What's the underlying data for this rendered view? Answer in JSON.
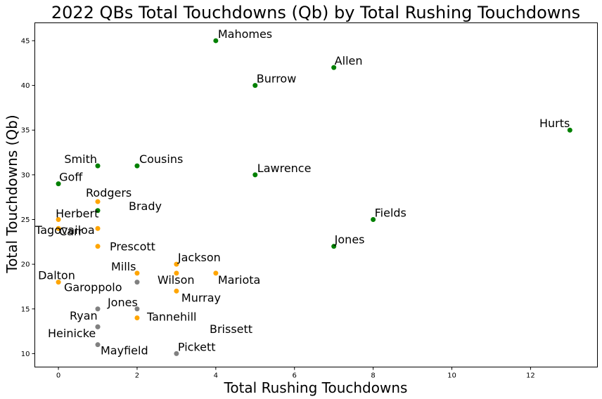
{
  "chart_data": {
    "type": "scatter",
    "title": "2022 QBs Total Touchdowns (Qb) by Total Rushing Touchdowns",
    "xlabel": "Total Rushing Touchdowns",
    "ylabel": "Total Touchdowns (Qb)",
    "xlim": [
      -0.6,
      13.7
    ],
    "ylim": [
      8.5,
      47
    ],
    "xticks": [
      0,
      2,
      4,
      6,
      8,
      10,
      12
    ],
    "yticks": [
      10,
      15,
      20,
      25,
      30,
      35,
      40,
      45
    ],
    "grid": false,
    "colors": {
      "high": "#008000",
      "mid": "#ffa500",
      "low": "#808080"
    },
    "points": [
      {
        "label": "Mahomes",
        "x": 4,
        "y": 45,
        "group": "high"
      },
      {
        "label": "Allen",
        "x": 7,
        "y": 42,
        "group": "high"
      },
      {
        "label": "Burrow",
        "x": 5,
        "y": 40,
        "group": "high"
      },
      {
        "label": "Hurts",
        "x": 13,
        "y": 35,
        "group": "high"
      },
      {
        "label": "Smith",
        "x": 1,
        "y": 31,
        "group": "high"
      },
      {
        "label": "Cousins",
        "x": 2,
        "y": 31,
        "group": "high"
      },
      {
        "label": "Lawrence",
        "x": 5,
        "y": 30,
        "group": "high"
      },
      {
        "label": "Goff",
        "x": 0,
        "y": 29,
        "group": "high"
      },
      {
        "label": "Rodgers",
        "x": 1,
        "y": 27,
        "group": "mid"
      },
      {
        "label": "Brady",
        "x": 1,
        "y": 26,
        "group": "high"
      },
      {
        "label": "Herbert",
        "x": 0,
        "y": 25,
        "group": "mid"
      },
      {
        "label": "Fields",
        "x": 8,
        "y": 25,
        "group": "high"
      },
      {
        "label": "Tagovailoa",
        "x": 0,
        "y": 24,
        "group": "mid"
      },
      {
        "label": "Carr",
        "x": 1,
        "y": 24,
        "group": "mid"
      },
      {
        "label": "Jones",
        "x": 7,
        "y": 22,
        "group": "high"
      },
      {
        "label": "Prescott",
        "x": 1,
        "y": 22,
        "group": "mid"
      },
      {
        "label": "Jackson",
        "x": 3,
        "y": 20,
        "group": "mid"
      },
      {
        "label": "Mills",
        "x": 2,
        "y": 19,
        "group": "mid"
      },
      {
        "label": "Wilson",
        "x": 3,
        "y": 19,
        "group": "mid"
      },
      {
        "label": "Mariota",
        "x": 4,
        "y": 19,
        "group": "mid"
      },
      {
        "label": "Dalton",
        "x": 0,
        "y": 18,
        "group": "mid"
      },
      {
        "label": "Garoppolo",
        "x": 2,
        "y": 18,
        "group": "low"
      },
      {
        "label": "Murray",
        "x": 3,
        "y": 17,
        "group": "mid"
      },
      {
        "label": "Jones",
        "x": 2,
        "y": 15,
        "group": "low"
      },
      {
        "label": "Ryan",
        "x": 1,
        "y": 15,
        "group": "low"
      },
      {
        "label": "Tannehill",
        "x": 2,
        "y": 14,
        "group": "mid"
      },
      {
        "label": "Heinicke",
        "x": 1,
        "y": 13,
        "group": "low"
      },
      {
        "label": "Brissett",
        "x": 1,
        "y": 13,
        "group": "low"
      },
      {
        "label": "Mayfield",
        "x": 1,
        "y": 11,
        "group": "low"
      },
      {
        "label": "Pickett",
        "x": 3,
        "y": 10,
        "group": "low"
      }
    ]
  }
}
